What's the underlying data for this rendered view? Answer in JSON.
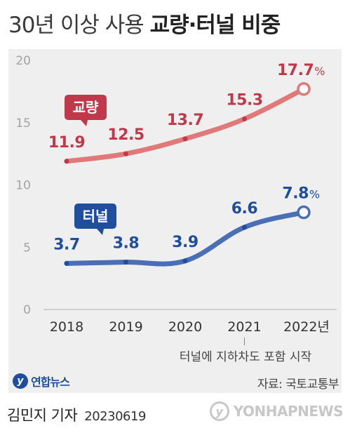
{
  "title": {
    "part1": "30년 이상 사용 ",
    "part2": "교량·터널 비중"
  },
  "chart_data": {
    "type": "line",
    "categories": [
      "2018",
      "2019",
      "2020",
      "2021",
      "2022년"
    ],
    "ylim": [
      0,
      20
    ],
    "yticks": [
      "0",
      "5",
      "10",
      "15",
      "20"
    ],
    "grid": false,
    "series": [
      {
        "name": "교량",
        "values": [
          11.9,
          12.5,
          13.7,
          15.3,
          17.7
        ],
        "labels": [
          "11.9",
          "12.5",
          "13.7",
          "15.3",
          "17.7"
        ],
        "last_suffix": "%",
        "color": "#e07a7a",
        "label_color": "#c0394a",
        "badge_color": "#c0394a"
      },
      {
        "name": "터널",
        "values": [
          3.7,
          3.8,
          3.9,
          6.6,
          7.8
        ],
        "labels": [
          "3.7",
          "3.8",
          "3.9",
          "6.6",
          "7.8"
        ],
        "last_suffix": "%",
        "color": "#4a6fb5",
        "label_color": "#1f4e9c",
        "badge_color": "#1f4e9c"
      }
    ],
    "annotation": {
      "category_index": 3,
      "text": "터널에 지하차도 포함 시작"
    }
  },
  "logo": {
    "mark": "y",
    "name": "연합뉴스"
  },
  "source": "자료: 국토교통부",
  "byline": {
    "author": "김민지 기자",
    "date": "20230619"
  },
  "watermark": {
    "mark": "y",
    "text": "YONHAPNEWS"
  }
}
